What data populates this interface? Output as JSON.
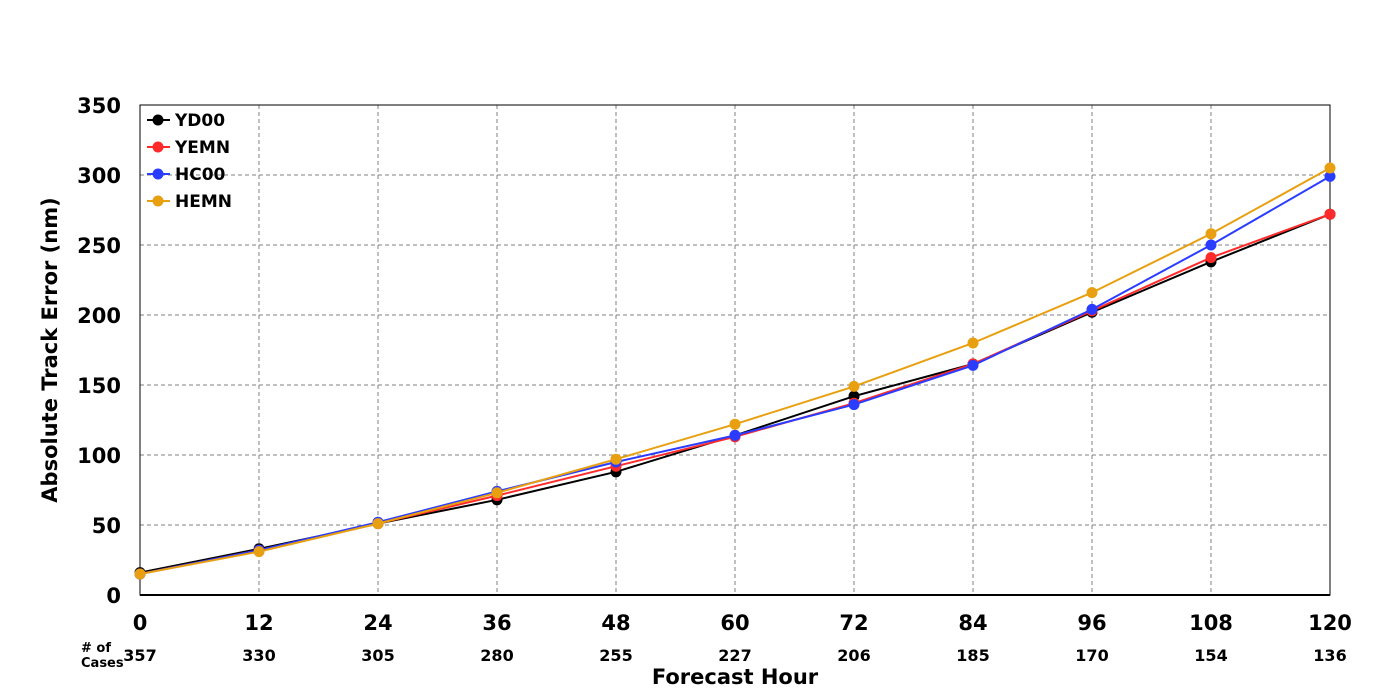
{
  "chart_data": {
    "type": "line",
    "xlabel": "Forecast Hour",
    "ylabel": "Absolute Track Error (nm)",
    "x": [
      0,
      12,
      24,
      36,
      48,
      60,
      72,
      84,
      96,
      108,
      120
    ],
    "xlim": [
      0,
      120
    ],
    "ylim": [
      0,
      350
    ],
    "yticks": [
      0,
      50,
      100,
      150,
      200,
      250,
      300,
      350
    ],
    "grid": true,
    "legend_position": "top-left",
    "cases_label": "# of\nCases",
    "cases": [
      "357",
      "330",
      "305",
      "280",
      "255",
      "227",
      "206",
      "185",
      "170",
      "154",
      "136"
    ],
    "series": [
      {
        "name": "YD00",
        "color": "#000000",
        "values": [
          16,
          33,
          51,
          68,
          88,
          114,
          142,
          165,
          202,
          238,
          272
        ]
      },
      {
        "name": "YEMN",
        "color": "#ff2a2a",
        "values": [
          15,
          32,
          51,
          71,
          92,
          113,
          137,
          165,
          203,
          241,
          272
        ]
      },
      {
        "name": "HC00",
        "color": "#2a3cff",
        "values": [
          15,
          32,
          52,
          74,
          95,
          114,
          136,
          164,
          204,
          250,
          299
        ]
      },
      {
        "name": "HEMN",
        "color": "#e8a010",
        "values": [
          15,
          31,
          51,
          73,
          97,
          122,
          149,
          180,
          216,
          258,
          305
        ]
      }
    ]
  }
}
